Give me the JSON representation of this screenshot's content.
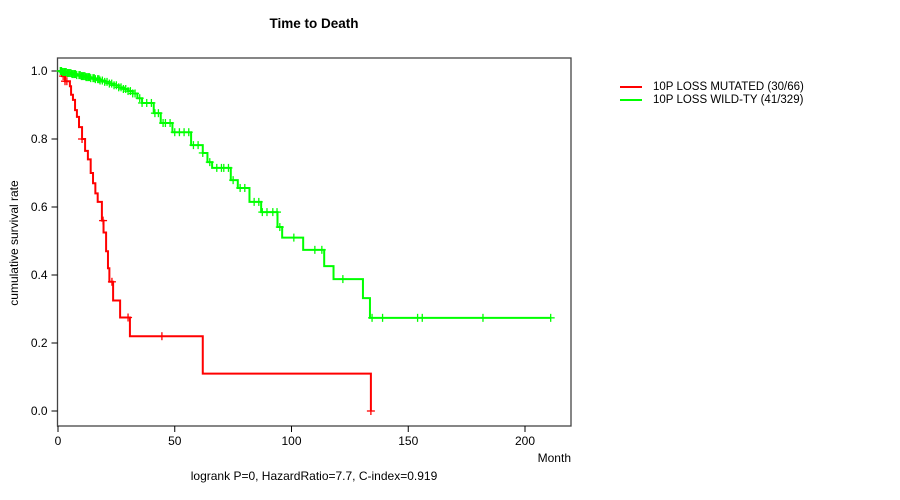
{
  "chart_data": {
    "type": "line",
    "subtype": "kaplan-meier-step",
    "title": "Time to Death",
    "xlabel": "Month",
    "ylabel": "cumulative survival rate",
    "annotation": "logrank P=0, HazardRatio=7.7, C-index=0.919",
    "xlim": [
      0,
      220
    ],
    "ylim": [
      0,
      1
    ],
    "x_ticks": [
      0,
      50,
      100,
      150,
      200
    ],
    "y_ticks": [
      0.0,
      0.2,
      0.4,
      0.6,
      0.8,
      1.0
    ],
    "grid": false,
    "legend_position": "right-outside",
    "series": [
      {
        "name": "10P LOSS MUTATED (30/66)",
        "color": "#ff0000",
        "steps": [
          [
            0,
            1.0
          ],
          [
            1.7,
            0.985
          ],
          [
            3,
            0.97
          ],
          [
            5.1,
            0.955
          ],
          [
            5.6,
            0.93
          ],
          [
            6.4,
            0.915
          ],
          [
            7.3,
            0.885
          ],
          [
            8.1,
            0.865
          ],
          [
            9,
            0.835
          ],
          [
            10.3,
            0.8
          ],
          [
            11.6,
            0.765
          ],
          [
            12.8,
            0.74
          ],
          [
            14,
            0.7
          ],
          [
            15,
            0.67
          ],
          [
            16,
            0.64
          ],
          [
            17,
            0.615
          ],
          [
            18.8,
            0.56
          ],
          [
            19.5,
            0.525
          ],
          [
            20.6,
            0.47
          ],
          [
            21.4,
            0.42
          ],
          [
            22,
            0.38
          ],
          [
            23.6,
            0.325
          ],
          [
            26.6,
            0.275
          ],
          [
            30.8,
            0.22
          ],
          [
            62,
            0.11
          ],
          [
            134,
            0.0
          ]
        ],
        "censor_times": [
          2.2,
          3,
          3.8,
          10.3,
          19.3,
          23.1,
          30,
          44.5,
          134
        ]
      },
      {
        "name": "10P LOSS WILD-TY (41/329)",
        "color": "#00ff00",
        "steps": [
          [
            0,
            1.0
          ],
          [
            2,
            0.997
          ],
          [
            4,
            0.994
          ],
          [
            6,
            0.991
          ],
          [
            8,
            0.988
          ],
          [
            10,
            0.985
          ],
          [
            12,
            0.982
          ],
          [
            14,
            0.979
          ],
          [
            16,
            0.976
          ],
          [
            18,
            0.972
          ],
          [
            20,
            0.968
          ],
          [
            22,
            0.963
          ],
          [
            24,
            0.958
          ],
          [
            26,
            0.952
          ],
          [
            28,
            0.947
          ],
          [
            30,
            0.941
          ],
          [
            32,
            0.934
          ],
          [
            34,
            0.92
          ],
          [
            36,
            0.906
          ],
          [
            41,
            0.876
          ],
          [
            44,
            0.847
          ],
          [
            49,
            0.82
          ],
          [
            57,
            0.782
          ],
          [
            62,
            0.759
          ],
          [
            64,
            0.732
          ],
          [
            66,
            0.715
          ],
          [
            74,
            0.679
          ],
          [
            77,
            0.656
          ],
          [
            82,
            0.615
          ],
          [
            87,
            0.585
          ],
          [
            94,
            0.541
          ],
          [
            96,
            0.51
          ],
          [
            105,
            0.474
          ],
          [
            114,
            0.426
          ],
          [
            118,
            0.388
          ],
          [
            130.6,
            0.332
          ],
          [
            133.6,
            0.274
          ],
          [
            211,
            0.274
          ]
        ],
        "censor_times": [
          1,
          1.5,
          2,
          2.5,
          3,
          3.5,
          4,
          4.5,
          5,
          5.5,
          6,
          6.5,
          7,
          7.5,
          8,
          9,
          9.5,
          10,
          10.5,
          11,
          11.5,
          12,
          12.5,
          13,
          13.5,
          14,
          15,
          15.5,
          16,
          17,
          17.5,
          18,
          19,
          20,
          21,
          22,
          23,
          24,
          25,
          26,
          27,
          28,
          29,
          30,
          31,
          32,
          33,
          35,
          36,
          38,
          40,
          41.5,
          43,
          45,
          46,
          48,
          50,
          52,
          54,
          56,
          58,
          60,
          62,
          65,
          68,
          70,
          71,
          73,
          75,
          78,
          80,
          84,
          86,
          87.5,
          89.5,
          92,
          93.8,
          95,
          101,
          110,
          113,
          122,
          134.5,
          139,
          154,
          156,
          182,
          211
        ]
      }
    ]
  },
  "legend": {
    "items": [
      {
        "label": "10P LOSS MUTATED (30/66)",
        "color": "#ff0000"
      },
      {
        "label": "10P LOSS WILD-TY (41/329)",
        "color": "#00ff00"
      }
    ]
  }
}
